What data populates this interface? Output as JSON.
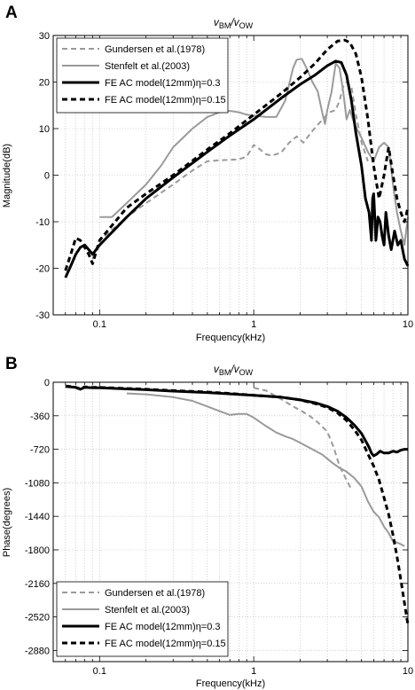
{
  "panels": [
    {
      "id": "A",
      "letter": "A",
      "title_main": "v",
      "title_sub1": "BM",
      "title_sep": "/v",
      "title_sub2": "OW"
    },
    {
      "id": "B",
      "letter": "B",
      "title_main": "v",
      "title_sub1": "BM",
      "title_sep": "/v",
      "title_sub2": "OW"
    }
  ],
  "styles": {
    "gundersen": {
      "color": "#9a9a9a",
      "dash": "6,4",
      "width": 2
    },
    "stenfelt": {
      "color": "#9a9a9a",
      "dash": "",
      "width": 2
    },
    "fe03": {
      "color": "#000000",
      "dash": "",
      "width": 3
    },
    "fe015": {
      "color": "#000000",
      "dash": "6,4",
      "width": 3
    }
  },
  "chart_data": [
    {
      "type": "line",
      "title": "vBM/vOW",
      "xlabel": "Frequency(kHz)",
      "ylabel": "Magnitude(dB)",
      "xscale": "log",
      "xlim": [
        0.05,
        10
      ],
      "ylim": [
        -30,
        30
      ],
      "xticks": [
        0.1,
        1,
        10
      ],
      "xtick_labels": [
        "0.1",
        "1",
        "10"
      ],
      "yticks": [
        -30,
        -20,
        -10,
        0,
        10,
        20,
        30
      ],
      "ytick_labels": [
        "-30",
        "-20",
        "-10",
        "0",
        "10",
        "20",
        "30"
      ],
      "grid": true,
      "legend_position": "top-left",
      "series": [
        {
          "key": "gundersen",
          "name": "Gundersen et al.(1978)",
          "x": [
            0.09,
            0.1,
            0.15,
            0.2,
            0.3,
            0.4,
            0.5,
            0.6,
            0.7,
            0.8,
            0.9,
            1.0,
            1.1,
            1.2,
            1.3,
            1.5,
            1.7,
            1.9,
            2.1,
            2.4,
            2.8,
            3.1,
            3.4,
            3.6,
            3.8,
            4.0,
            4.3,
            4.6,
            5.0,
            5.5
          ],
          "y": [
            -18,
            -14,
            -9,
            -6,
            -2,
            1,
            3,
            3.2,
            3.3,
            3.4,
            4,
            6.5,
            5.5,
            4.5,
            4.2,
            4.8,
            7,
            8.3,
            7,
            9.5,
            12,
            13.5,
            14,
            16,
            19,
            20,
            19,
            13,
            7,
            3
          ]
        },
        {
          "key": "stenfelt",
          "name": "Stenfelt et al.(2003)",
          "x": [
            0.1,
            0.12,
            0.15,
            0.2,
            0.25,
            0.3,
            0.4,
            0.5,
            0.6,
            0.7,
            0.8,
            0.9,
            1.0,
            1.2,
            1.4,
            1.6,
            1.8,
            1.9,
            2.05,
            2.2,
            2.4,
            2.6,
            2.8,
            2.9,
            3.0,
            3.2,
            3.4,
            3.6,
            3.8,
            4.0,
            4.2,
            4.5,
            5.0,
            5.5,
            6.0,
            6.5,
            7.0,
            7.5,
            8.0,
            8.5,
            9.0,
            9.5,
            10.0
          ],
          "y": [
            -9,
            -9,
            -6,
            -2,
            2,
            6,
            10,
            12.5,
            13.5,
            13.8,
            13.5,
            13,
            12.8,
            12.5,
            12.5,
            16,
            23,
            24.8,
            25,
            23,
            20,
            18,
            13,
            11,
            14,
            18,
            24,
            23,
            18,
            12,
            14,
            11,
            8,
            5,
            3,
            6,
            7,
            6,
            -2,
            -8,
            -12,
            -15,
            -9
          ]
        },
        {
          "key": "fe03",
          "name": "FE AC model(12mm)η=0.3",
          "x": [
            0.06,
            0.065,
            0.07,
            0.075,
            0.08,
            0.085,
            0.09,
            0.1,
            0.15,
            0.2,
            0.3,
            0.5,
            0.7,
            1.0,
            1.5,
            2.0,
            2.5,
            3.0,
            3.4,
            3.7,
            4.0,
            4.3,
            4.6,
            5.0,
            5.3,
            5.6,
            5.8,
            5.9,
            6.0,
            6.2,
            6.4,
            6.6,
            6.8,
            7.0,
            7.2,
            7.5,
            7.8,
            8.2,
            8.6,
            9.0,
            9.5,
            10.0
          ],
          "y": [
            -22,
            -19.5,
            -17,
            -15.5,
            -15,
            -16,
            -17,
            -15,
            -9,
            -5,
            -0.5,
            5,
            8.5,
            12,
            16.5,
            19.5,
            21.5,
            23.5,
            24.5,
            24.2,
            21.5,
            16,
            9,
            2,
            -5,
            -8,
            -14,
            -5,
            -4,
            -14,
            -9,
            -10,
            -13,
            -15,
            -8,
            -13,
            -16,
            -12,
            -15,
            -14,
            -18,
            -19.5
          ]
        },
        {
          "key": "fe015",
          "name": "FE AC model(12mm)η=0.15",
          "x": [
            0.06,
            0.065,
            0.07,
            0.075,
            0.08,
            0.085,
            0.09,
            0.1,
            0.15,
            0.2,
            0.3,
            0.5,
            0.7,
            1.0,
            1.5,
            2.0,
            2.5,
            3.0,
            3.5,
            3.9,
            4.2,
            4.6,
            5.0,
            5.5,
            6.0,
            6.5,
            7.0,
            7.5,
            8.0,
            8.5,
            9.0,
            9.5,
            10.0
          ],
          "y": [
            -20.5,
            -17,
            -13.5,
            -14,
            -15.5,
            -17,
            -19,
            -14,
            -7,
            -4,
            0,
            5.5,
            9,
            13,
            17.5,
            21,
            24,
            27,
            28.8,
            29,
            28.5,
            26,
            21,
            12,
            2,
            -5,
            0,
            6,
            0,
            -5,
            -8,
            -10,
            -7
          ]
        }
      ]
    },
    {
      "type": "line",
      "title": "vBM/vOW",
      "xlabel": "Frequency(kHz)",
      "ylabel": "Phase(degrees)",
      "xscale": "log",
      "xlim": [
        0.05,
        10
      ],
      "ylim": [
        -3000,
        0
      ],
      "xticks": [
        0.1,
        1,
        10
      ],
      "xtick_labels": [
        "0.1",
        "1",
        "10"
      ],
      "yticks": [
        0,
        -360,
        -720,
        -1080,
        -1440,
        -1800,
        -2160,
        -2520,
        -2880
      ],
      "ytick_labels": [
        "0",
        "-360",
        "-720",
        "-1080",
        "-1440",
        "-1800",
        "-2160",
        "-2520",
        "-2880"
      ],
      "grid": true,
      "legend_position": "bottom-left",
      "series": [
        {
          "key": "gundersen",
          "name": "Gundersen et al.(1978)",
          "x": [
            1.0,
            1.2,
            1.5,
            1.8,
            2.0,
            2.3,
            2.6,
            3.0,
            3.3,
            3.6,
            4.0,
            4.3
          ],
          "y": [
            -60,
            -90,
            -180,
            -260,
            -300,
            -360,
            -430,
            -530,
            -700,
            -900,
            -1050,
            -1150
          ]
        },
        {
          "key": "stenfelt",
          "name": "Stenfelt et al.(2003)",
          "x": [
            0.15,
            0.2,
            0.3,
            0.4,
            0.5,
            0.6,
            0.7,
            0.8,
            0.9,
            1.0,
            1.2,
            1.4,
            1.6,
            1.8,
            2.0,
            2.4,
            2.8,
            3.2,
            3.6,
            4.0,
            4.5,
            5.0,
            5.5,
            6.0,
            6.5,
            7.0,
            7.5,
            8.0,
            8.5,
            9.0,
            9.5
          ],
          "y": [
            -120,
            -130,
            -160,
            -200,
            -260,
            -310,
            -350,
            -340,
            -340,
            -380,
            -470,
            -540,
            -580,
            -610,
            -650,
            -720,
            -780,
            -860,
            -920,
            -960,
            -1030,
            -1120,
            -1280,
            -1390,
            -1450,
            -1550,
            -1620,
            -1710,
            -1720,
            -1740,
            -1760
          ]
        },
        {
          "key": "fe03",
          "name": "FE AC model(12mm)η=0.3",
          "x": [
            0.06,
            0.065,
            0.07,
            0.075,
            0.08,
            0.09,
            0.1,
            0.2,
            0.3,
            0.5,
            0.7,
            1.0,
            1.5,
            2.0,
            2.5,
            3.0,
            3.5,
            4.0,
            4.5,
            5.0,
            5.4,
            5.6,
            5.8,
            6.0,
            6.3,
            6.6,
            7.0,
            7.5,
            8.0,
            8.5,
            9.0,
            9.5,
            10.0
          ],
          "y": [
            -45,
            -50,
            -55,
            -75,
            -55,
            -60,
            -60,
            -80,
            -95,
            -110,
            -125,
            -140,
            -160,
            -190,
            -220,
            -260,
            -310,
            -380,
            -460,
            -550,
            -650,
            -700,
            -760,
            -790,
            -770,
            -740,
            -760,
            -760,
            -740,
            -750,
            -730,
            -720,
            -720
          ]
        },
        {
          "key": "fe015",
          "name": "FE AC model(12mm)η=0.15",
          "x": [
            0.06,
            0.065,
            0.07,
            0.075,
            0.08,
            0.09,
            0.1,
            0.2,
            0.3,
            0.5,
            0.7,
            1.0,
            1.5,
            2.0,
            2.5,
            3.0,
            3.5,
            4.0,
            4.5,
            5.0,
            5.5,
            6.0,
            6.5,
            7.0,
            7.5,
            8.0,
            8.5,
            9.0,
            9.5,
            10.0
          ],
          "y": [
            -40,
            -45,
            -55,
            -70,
            -50,
            -55,
            -55,
            -75,
            -90,
            -105,
            -120,
            -140,
            -160,
            -190,
            -230,
            -270,
            -330,
            -410,
            -510,
            -620,
            -770,
            -900,
            -1050,
            -1240,
            -1420,
            -1640,
            -1870,
            -2120,
            -2370,
            -2600
          ]
        }
      ]
    }
  ]
}
